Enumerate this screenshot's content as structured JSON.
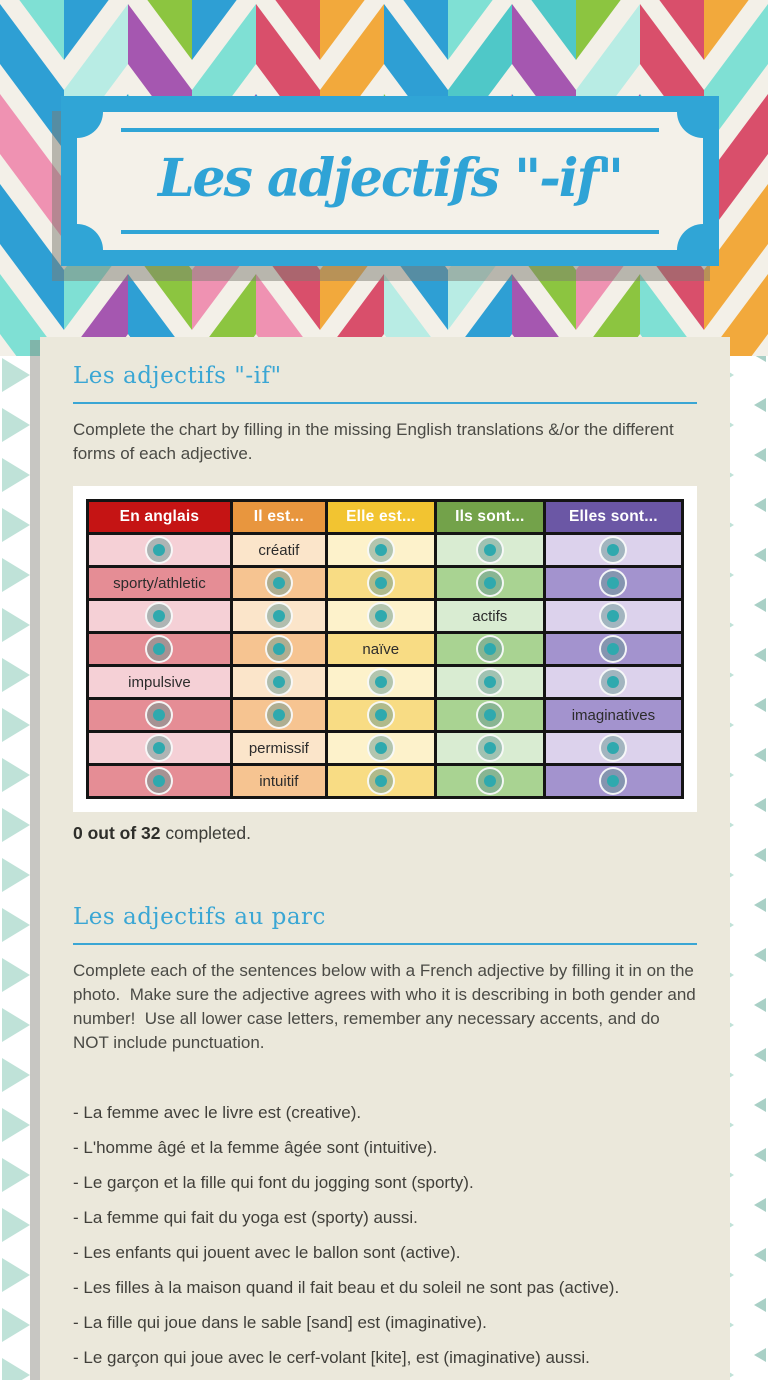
{
  "banner": {
    "title": "Les adjectifs \"-if\""
  },
  "section1": {
    "heading": "Les adjectifs \"-if\"",
    "instructions": "Complete the chart by filling in the missing English translations &/or the different forms of each adjective.",
    "table": {
      "headers": [
        "En anglais",
        "Il est...",
        "Elle est...",
        "Ils sont...",
        "Elles sont..."
      ],
      "rows": [
        [
          null,
          "créatif",
          null,
          null,
          null
        ],
        [
          "sporty/athletic",
          null,
          null,
          null,
          null
        ],
        [
          null,
          null,
          null,
          "actifs",
          null
        ],
        [
          null,
          null,
          "naïve",
          null,
          null
        ],
        [
          "impulsive",
          null,
          null,
          null,
          null
        ],
        [
          null,
          null,
          null,
          null,
          "imaginatives"
        ],
        [
          null,
          "permissif",
          null,
          null,
          null
        ],
        [
          null,
          "intuitif",
          null,
          null,
          null
        ]
      ]
    },
    "progress_bold": "0 out of 32",
    "progress_rest": " completed."
  },
  "section2": {
    "heading": "Les adjectifs au parc",
    "instructions": "Complete each of the sentences below with a French adjective by filling it in on the photo.  Make sure the adjective agrees with who it is describing in both gender and number!  Use all lower case letters, remember any necessary accents, and do NOT include punctuation.",
    "sentences": [
      "- La femme avec le livre est (creative).",
      "- L'homme âgé et la femme âgée sont (intuitive).",
      "- Le garçon et la fille qui font du jogging sont (sporty).",
      "- La femme qui fait du yoga est (sporty) aussi.",
      "- Les enfants qui jouent avec le ballon sont (active).",
      "- Les filles à la maison quand il fait beau et du soleil ne sont pas (active).",
      "- La fille qui joue dans le sable [sand] est (imaginative).",
      "- Le garçon qui joue avec le cerf-volant [kite], est (imaginative) aussi."
    ]
  },
  "colors": {
    "accent_blue": "#2fa3d6",
    "header_red": "#c51414",
    "header_orange": "#e8963e",
    "header_yellow": "#f2c431",
    "header_green": "#73a24a",
    "header_purple": "#6b57a5",
    "circle_teal": "#2fa9ae",
    "card_beige": "#ebe8db"
  },
  "decor": {
    "chevron_palette": [
      "#2e9fd4",
      "#7fe0d4",
      "#8cc540",
      "#d94f6b",
      "#f2a93c",
      "#a557b0",
      "#ef92b2",
      "#4fc8c8",
      "#b8ece4"
    ],
    "triangle_large": "#bfe2d8",
    "triangle_small": "#a9d0c6",
    "chevron_bg": "#f3f0e8"
  }
}
